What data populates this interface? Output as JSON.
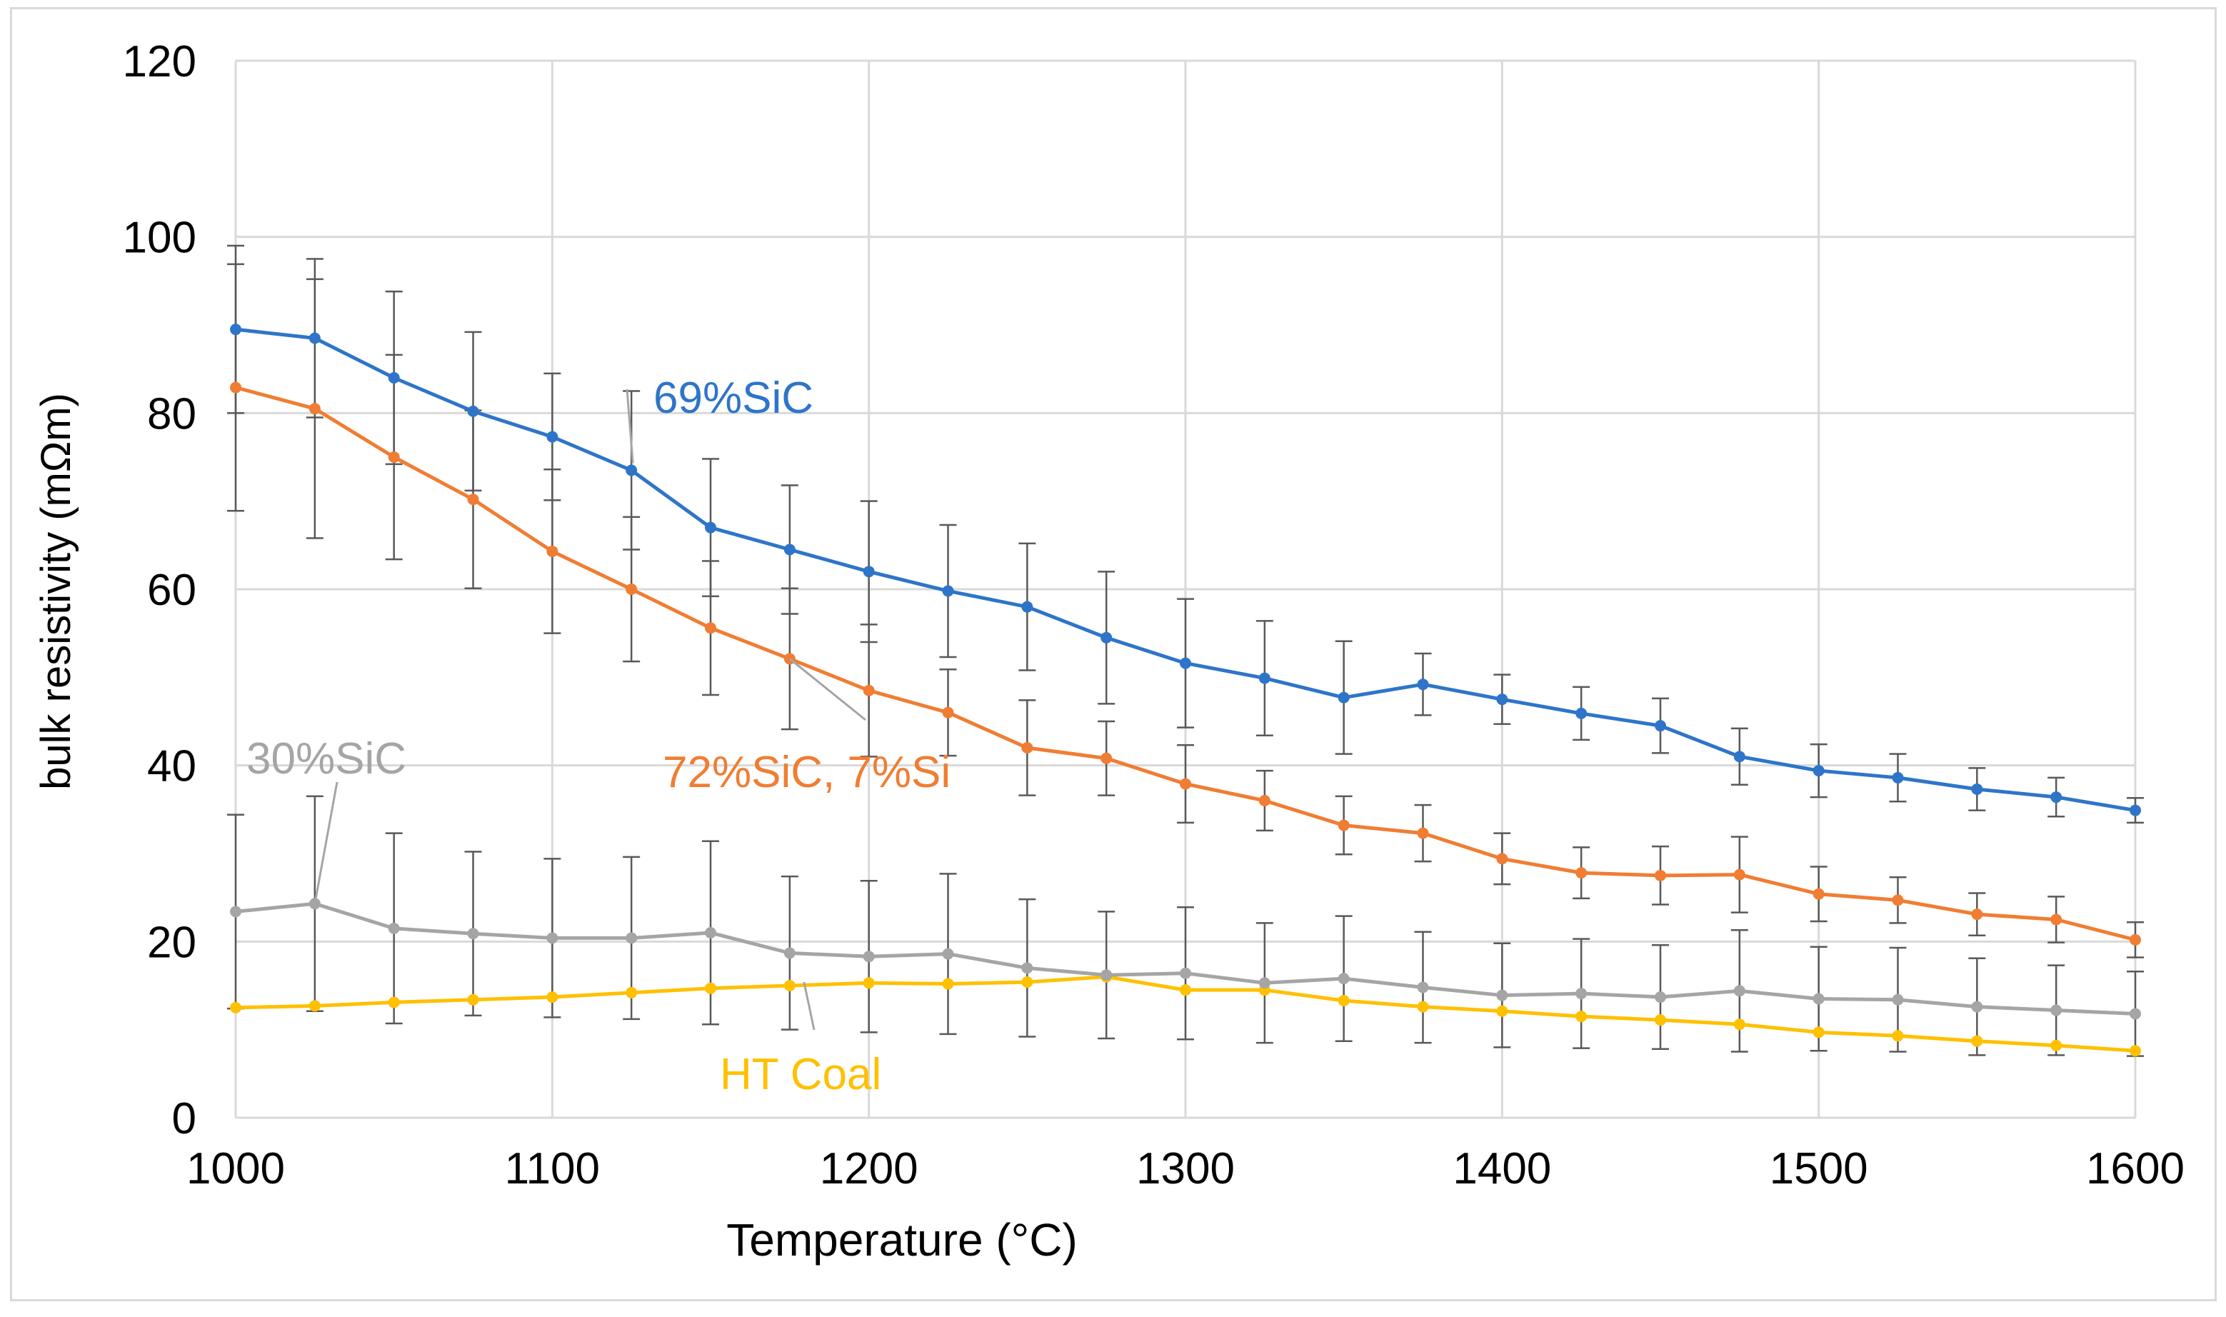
{
  "chart_data": {
    "type": "line",
    "title": "",
    "xlabel": "Temperature (°C)",
    "ylabel": "bulk resistivity (mΩm)",
    "xlim": [
      1000,
      1600
    ],
    "ylim": [
      0,
      120
    ],
    "xticks": [
      1000,
      1100,
      1200,
      1300,
      1400,
      1500,
      1600
    ],
    "yticks": [
      0,
      20,
      40,
      60,
      80,
      100,
      120
    ],
    "grid": true,
    "legend": "inline labels",
    "x": [
      1000,
      1025,
      1050,
      1075,
      1100,
      1125,
      1150,
      1175,
      1200,
      1225,
      1250,
      1275,
      1300,
      1325,
      1350,
      1375,
      1400,
      1425,
      1450,
      1475,
      1500,
      1525,
      1550,
      1575,
      1600
    ],
    "series": [
      {
        "name": "69%SiC",
        "color": "#2e75c9",
        "values": [
          89.5,
          88.5,
          84,
          80.2,
          77.3,
          73.5,
          67,
          64.5,
          62,
          59.8,
          58,
          54.5,
          51.6,
          49.9,
          47.7,
          49.2,
          47.5,
          45.9,
          44.5,
          41,
          39.4,
          38.6,
          37.3,
          36.4,
          34.9
        ],
        "errors": [
          9.5,
          9,
          9.8,
          9,
          7.2,
          9,
          7.8,
          7.3,
          8,
          7.5,
          7.2,
          7.5,
          7.3,
          6.5,
          6.4,
          3.5,
          2.8,
          3,
          3.1,
          3.2,
          3,
          2.7,
          2.4,
          2.2,
          1.4
        ]
      },
      {
        "name": "72%SiC, 7%Si",
        "color": "#f07d33",
        "values": [
          82.9,
          80.5,
          75,
          70.2,
          64.3,
          60,
          55.6,
          52.1,
          48.5,
          46,
          42,
          40.8,
          37.9,
          36,
          33.2,
          32.3,
          29.4,
          27.8,
          27.5,
          27.6,
          25.4,
          24.7,
          23.1,
          22.5,
          20.2
        ],
        "errors": [
          14,
          14.7,
          11.6,
          10.1,
          9.3,
          8.2,
          7.6,
          8,
          7.5,
          4.9,
          5.4,
          4.2,
          4.4,
          3.4,
          3.3,
          3.2,
          2.9,
          2.9,
          3.3,
          4.3,
          3.1,
          2.6,
          2.4,
          2.6,
          2
        ]
      },
      {
        "name": "30%SiC",
        "color": "#a5a5a5",
        "values": [
          23.4,
          24.3,
          21.5,
          20.9,
          20.4,
          20.4,
          21,
          18.7,
          18.3,
          18.6,
          17,
          16.2,
          16.4,
          15.3,
          15.8,
          14.8,
          13.9,
          14.1,
          13.7,
          14.4,
          13.5,
          13.4,
          12.6,
          12.2,
          11.8
        ],
        "errors": [
          11,
          12.2,
          10.8,
          9.3,
          9,
          9.2,
          10.4,
          8.7,
          8.6,
          9.1,
          7.8,
          7.2,
          7.5,
          6.8,
          7.1,
          6.3,
          5.9,
          6.2,
          5.9,
          6.9,
          5.9,
          5.9,
          5.5,
          5.1,
          4.8
        ]
      },
      {
        "name": "HT Coal",
        "color": "#ffc000",
        "values": [
          12.5,
          12.7,
          13.1,
          13.4,
          13.7,
          14.2,
          14.7,
          15,
          15.3,
          15.2,
          15.4,
          16,
          14.5,
          14.5,
          13.3,
          12.6,
          12.1,
          11.5,
          11.1,
          10.6,
          9.7,
          9.3,
          8.7,
          8.2,
          7.6
        ]
      }
    ],
    "annotations": [
      {
        "text": "69%SiC",
        "series": "69%SiC"
      },
      {
        "text": "72%SiC, 7%Si",
        "series": "72%SiC, 7%Si"
      },
      {
        "text": "30%SiC",
        "series": "30%SiC"
      },
      {
        "text": "HT Coal",
        "series": "HT Coal"
      }
    ]
  }
}
